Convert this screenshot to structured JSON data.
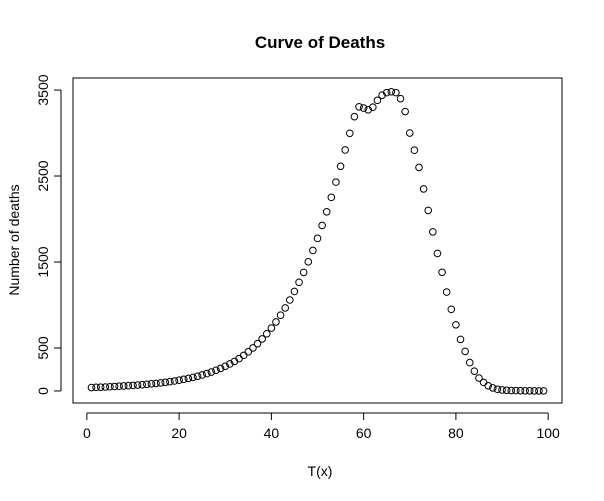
{
  "chart_data": {
    "type": "scatter",
    "title": "Curve of Deaths",
    "xlabel": "T(x)",
    "ylabel": "Number of deaths",
    "xlim": [
      -3,
      103
    ],
    "ylim": [
      -140,
      3640
    ],
    "xticks": [
      0,
      20,
      40,
      60,
      80,
      100
    ],
    "yticks": [
      0,
      500,
      1500,
      2500,
      3500
    ],
    "grid": false,
    "point_style": "open-circle",
    "x": [
      1,
      2,
      3,
      4,
      5,
      6,
      7,
      8,
      9,
      10,
      11,
      12,
      13,
      14,
      15,
      16,
      17,
      18,
      19,
      20,
      21,
      22,
      23,
      24,
      25,
      26,
      27,
      28,
      29,
      30,
      31,
      32,
      33,
      34,
      35,
      36,
      37,
      38,
      39,
      40,
      41,
      42,
      43,
      44,
      45,
      46,
      47,
      48,
      49,
      50,
      51,
      52,
      53,
      54,
      55,
      56,
      57,
      58,
      59,
      60,
      61,
      62,
      63,
      64,
      65,
      66,
      67,
      68,
      69,
      70,
      71,
      72,
      73,
      74,
      75,
      76,
      77,
      78,
      79,
      80,
      81,
      82,
      83,
      84,
      85,
      86,
      87,
      88,
      89,
      90,
      91,
      92,
      93,
      94,
      95,
      96,
      97,
      98,
      99
    ],
    "y": [
      40,
      42,
      44,
      46,
      49,
      52,
      55,
      58,
      61,
      65,
      69,
      73,
      78,
      83,
      88,
      94,
      101,
      108,
      116,
      125,
      135,
      146,
      158,
      171,
      186,
      202,
      220,
      240,
      262,
      287,
      314,
      344,
      377,
      414,
      455,
      500,
      550,
      605,
      665,
      731,
      803,
      881,
      966,
      1058,
      1157,
      1264,
      1379,
      1502,
      1634,
      1775,
      1925,
      2084,
      2252,
      2429,
      2613,
      2803,
      2997,
      3190,
      3305,
      3290,
      3270,
      3300,
      3380,
      3440,
      3470,
      3480,
      3470,
      3400,
      3250,
      3000,
      2800,
      2600,
      2350,
      2100,
      1850,
      1600,
      1380,
      1150,
      950,
      770,
      600,
      460,
      330,
      230,
      150,
      100,
      60,
      35,
      20,
      12,
      8,
      5,
      4,
      3,
      2,
      2,
      1,
      1,
      1
    ]
  }
}
